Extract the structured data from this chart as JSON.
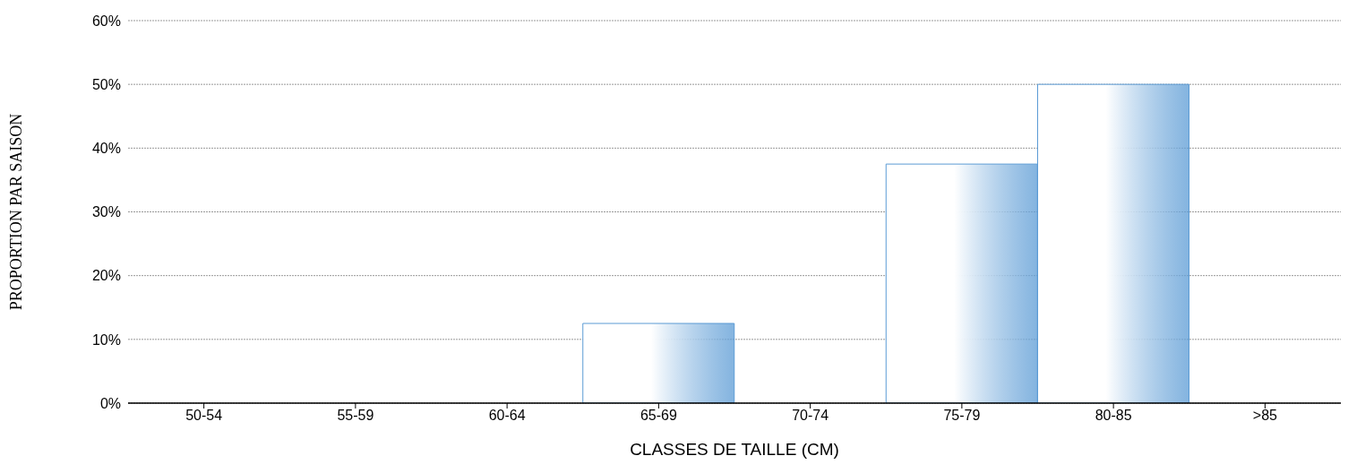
{
  "chart_data": {
    "type": "bar",
    "xlabel": "CLASSES DE TAILLE (CM)",
    "ylabel": "PROPORTION PAR SAISON",
    "categories": [
      "50-54",
      "55-59",
      "60-64",
      "65-69",
      "70-74",
      "75-79",
      "80-85",
      ">85"
    ],
    "values": [
      0,
      0,
      0,
      12.5,
      0,
      37.5,
      50,
      0
    ],
    "color": "#5b9bd5",
    "ylim": [
      0,
      60
    ],
    "yticks": [
      {
        "value": 0,
        "label": "0%"
      },
      {
        "value": 10,
        "label": "10%"
      },
      {
        "value": 20,
        "label": "20%"
      },
      {
        "value": 30,
        "label": "30%"
      },
      {
        "value": 40,
        "label": "40%"
      },
      {
        "value": 50,
        "label": "50%"
      },
      {
        "value": 60,
        "label": "60%"
      }
    ],
    "grid": "y"
  }
}
